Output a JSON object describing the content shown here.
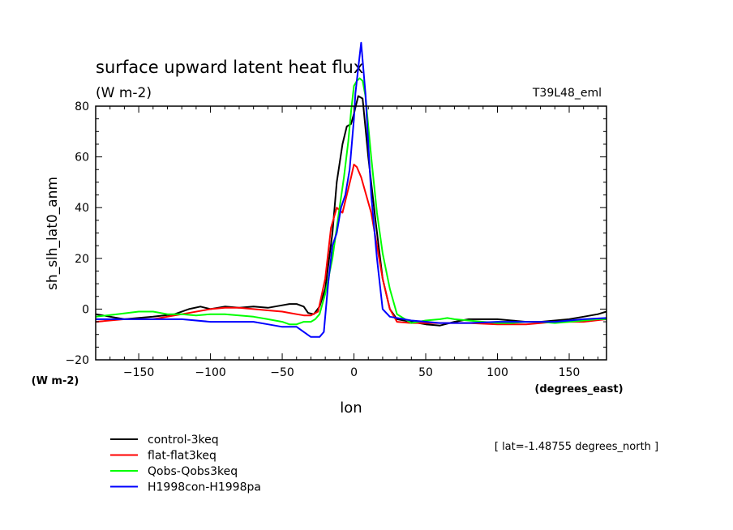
{
  "chart_data": {
    "type": "line",
    "title": "surface upward latent heat flux",
    "units_label": "(W m-2)",
    "run_label": "T39L48_eml",
    "ylabel": "sh_slh_lat0_anm",
    "xlabel": "lon",
    "x_units": "(degrees_east)",
    "y_units": "(W m-2)",
    "note": "[ lat=-1.48755 degrees_north ]",
    "xlim": [
      -180,
      176
    ],
    "ylim": [
      -20,
      80
    ],
    "xticks": [
      -150,
      -100,
      -50,
      0,
      50,
      100,
      150
    ],
    "yticks": [
      -20,
      0,
      20,
      40,
      60,
      80
    ],
    "grid": false,
    "legend_position": "bottom-left, below plot",
    "series": [
      {
        "name": "control-3keq",
        "color": "#000000",
        "x": [
          -180,
          -160,
          -140,
          -125,
          -115,
          -107,
          -100,
          -90,
          -80,
          -70,
          -60,
          -50,
          -45,
          -40,
          -35,
          -32,
          -28,
          -24,
          -20,
          -15,
          -12,
          -8,
          -5,
          -2,
          0,
          3,
          6,
          10,
          15,
          20,
          25,
          30,
          40,
          50,
          60,
          70,
          80,
          90,
          100,
          110,
          120,
          130,
          140,
          150,
          160,
          170,
          176
        ],
        "y": [
          -2,
          -4,
          -3,
          -2,
          0,
          1,
          0,
          1,
          0.5,
          1,
          0.5,
          1.5,
          2,
          2,
          1,
          -1.5,
          -2,
          1,
          8,
          30,
          50,
          65,
          72,
          73,
          77,
          84,
          83,
          60,
          35,
          12,
          0,
          -4,
          -5,
          -6,
          -6.5,
          -5,
          -4,
          -4,
          -4,
          -4.5,
          -5,
          -5,
          -4.5,
          -4,
          -3,
          -2,
          -1
        ]
      },
      {
        "name": "flat-flat3keq",
        "color": "#ff0000",
        "x": [
          -180,
          -160,
          -140,
          -120,
          -100,
          -90,
          -80,
          -70,
          -60,
          -50,
          -45,
          -40,
          -35,
          -30,
          -25,
          -20,
          -16,
          -12,
          -8,
          -5,
          -2,
          0,
          2,
          5,
          8,
          12,
          16,
          20,
          25,
          30,
          40,
          60,
          80,
          100,
          120,
          140,
          160,
          176
        ],
        "y": [
          -5,
          -4,
          -4,
          -2,
          0,
          0.5,
          0.5,
          0,
          -0.5,
          -1,
          -1.5,
          -2,
          -2.5,
          -2.5,
          -1,
          12,
          32,
          40,
          38,
          45,
          52,
          57,
          56,
          52,
          46,
          38,
          25,
          12,
          0,
          -5,
          -5.5,
          -5.5,
          -5.5,
          -6,
          -6,
          -5,
          -5,
          -4
        ]
      },
      {
        "name": "Qobs-Qobs3keq",
        "color": "#00ff00",
        "x": [
          -180,
          -165,
          -150,
          -140,
          -130,
          -120,
          -110,
          -100,
          -90,
          -80,
          -70,
          -60,
          -50,
          -45,
          -40,
          -35,
          -30,
          -27,
          -24,
          -20,
          -15,
          -10,
          -7,
          -4,
          -2,
          0,
          2,
          4,
          6,
          8,
          12,
          16,
          20,
          25,
          30,
          40,
          50,
          60,
          65,
          70,
          80,
          90,
          100,
          110,
          120,
          130,
          140,
          150,
          160,
          170,
          176
        ],
        "y": [
          -3,
          -2,
          -1,
          -1,
          -2,
          -2,
          -2.5,
          -2,
          -2,
          -2.5,
          -3,
          -4,
          -5,
          -6,
          -6,
          -5,
          -5,
          -4,
          -2,
          6,
          20,
          40,
          52,
          66,
          78,
          88,
          90,
          91,
          90,
          84,
          60,
          38,
          22,
          8,
          -2,
          -5.5,
          -4.5,
          -4,
          -3.5,
          -4,
          -4.5,
          -5,
          -5.5,
          -5.5,
          -5,
          -5,
          -5.5,
          -5,
          -4.5,
          -4,
          -4
        ]
      },
      {
        "name": "H1998con-H1998pa",
        "color": "#0000ff",
        "x": [
          -180,
          -160,
          -140,
          -120,
          -100,
          -80,
          -70,
          -60,
          -50,
          -40,
          -35,
          -30,
          -27,
          -24,
          -21,
          -18,
          -15,
          -12,
          -9,
          -6,
          -3,
          0,
          1,
          3,
          5,
          8,
          12,
          16,
          20,
          25,
          30,
          40,
          60,
          80,
          100,
          120,
          140,
          160,
          176
        ],
        "y": [
          -4,
          -4,
          -4,
          -4,
          -5,
          -5,
          -5,
          -6,
          -7,
          -7,
          -9,
          -11,
          -11,
          -11,
          -9,
          10,
          25,
          30,
          40,
          45,
          55,
          75,
          85,
          95,
          105,
          85,
          45,
          20,
          0,
          -3,
          -3.5,
          -4.5,
          -5.5,
          -5.5,
          -5,
          -5,
          -5,
          -4,
          -3.5
        ]
      }
    ]
  }
}
